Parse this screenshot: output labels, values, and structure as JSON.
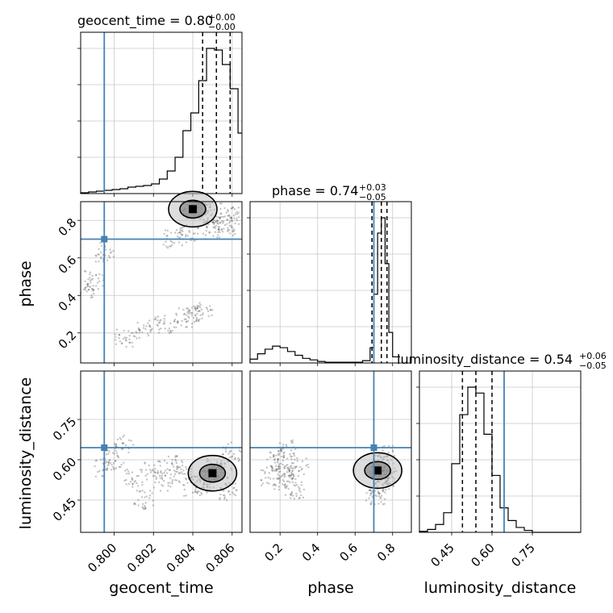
{
  "chart_data": {
    "type": "scatter",
    "subtype": "corner-plot",
    "parameters": [
      "geocent_time",
      "phase",
      "luminosity_distance"
    ],
    "titles": [
      {
        "parameter": "geocent_time",
        "label": "geocent_time = 0.80",
        "plus": "+0.00",
        "minus": "−0.00"
      },
      {
        "parameter": "phase",
        "label": "phase = 0.74",
        "plus": "+0.03",
        "minus": "−0.05"
      },
      {
        "parameter": "luminosity_distance",
        "label": "luminosity_distance = 0.54",
        "plus": "+0.06",
        "minus": "−0.05"
      }
    ],
    "axis_labels": {
      "x": [
        "geocent_time",
        "phase",
        "luminosity_distance"
      ],
      "y": [
        "phase",
        "luminosity_distance"
      ]
    },
    "ranges": {
      "geocent_time": [
        0.7983,
        0.8065
      ],
      "phase": [
        0.04,
        0.9
      ],
      "luminosity_distance": [
        0.33,
        0.93
      ]
    },
    "ticks": {
      "geocent_time": [
        {
          "value": 0.8,
          "label": "0.800"
        },
        {
          "value": 0.802,
          "label": "0.802"
        },
        {
          "value": 0.804,
          "label": "0.804"
        },
        {
          "value": 0.806,
          "label": "0.806"
        }
      ],
      "phase_x": [
        {
          "value": 0.2,
          "label": "0.2"
        },
        {
          "value": 0.4,
          "label": "0.4"
        },
        {
          "value": 0.6,
          "label": "0.6"
        },
        {
          "value": 0.8,
          "label": "0.8"
        }
      ],
      "phase_y": [
        {
          "value": 0.2,
          "label": "0.2"
        },
        {
          "value": 0.4,
          "label": "0.4"
        },
        {
          "value": 0.6,
          "label": "0.6"
        },
        {
          "value": 0.8,
          "label": "0.8"
        }
      ],
      "luminosity_distance": [
        {
          "value": 0.45,
          "label": "0.45"
        },
        {
          "value": 0.6,
          "label": "0.60"
        },
        {
          "value": 0.75,
          "label": "0.75"
        }
      ]
    },
    "truths": {
      "geocent_time": 0.7995,
      "phase": 0.7,
      "luminosity_distance": 0.645
    },
    "quantiles": {
      "geocent_time": [
        0.8045,
        0.8052,
        0.8059
      ],
      "phase": [
        0.69,
        0.74,
        0.77
      ],
      "luminosity_distance": [
        0.49,
        0.54,
        0.6
      ]
    },
    "histograms": {
      "geocent_time": {
        "edges": [
          0.7983,
          0.7987,
          0.7991,
          0.7995,
          0.7999,
          0.8003,
          0.8007,
          0.8011,
          0.8015,
          0.8019,
          0.8023,
          0.8027,
          0.8031,
          0.8035,
          0.8039,
          0.8043,
          0.8047,
          0.8051,
          0.8055,
          0.8059,
          0.8063,
          0.8065
        ],
        "counts": [
          1,
          2,
          3,
          4,
          5,
          6,
          8,
          9,
          10,
          12,
          18,
          28,
          45,
          78,
          100,
          140,
          180,
          178,
          160,
          130,
          75
        ]
      },
      "phase": {
        "edges": [
          0.04,
          0.08,
          0.12,
          0.16,
          0.2,
          0.24,
          0.28,
          0.32,
          0.36,
          0.4,
          0.44,
          0.48,
          0.52,
          0.56,
          0.6,
          0.64,
          0.68,
          0.7,
          0.72,
          0.74,
          0.76,
          0.78,
          0.8,
          0.84
        ],
        "counts": [
          5,
          12,
          18,
          22,
          20,
          15,
          10,
          6,
          4,
          2,
          1,
          1,
          1,
          1,
          1,
          3,
          20,
          90,
          170,
          190,
          130,
          40,
          8
        ]
      },
      "luminosity_distance": {
        "edges": [
          0.33,
          0.36,
          0.39,
          0.42,
          0.45,
          0.48,
          0.51,
          0.54,
          0.57,
          0.6,
          0.63,
          0.66,
          0.69,
          0.72,
          0.75,
          0.93
        ],
        "counts": [
          1,
          3,
          8,
          20,
          70,
          120,
          148,
          142,
          100,
          58,
          25,
          12,
          5,
          2,
          0
        ]
      }
    },
    "scatter_clusters": [
      {
        "x": "geocent_time",
        "y": "phase",
        "points": [
          [
            0.804,
            0.86
          ],
          [
            0.8045,
            0.85
          ],
          [
            0.805,
            0.84
          ],
          [
            0.8055,
            0.8
          ],
          [
            0.806,
            0.82
          ],
          [
            0.8038,
            0.73
          ],
          [
            0.805,
            0.75
          ],
          [
            0.8057,
            0.77
          ],
          [
            0.803,
            0.7
          ],
          [
            0.7995,
            0.63
          ],
          [
            0.799,
            0.48
          ],
          [
            0.7985,
            0.44
          ],
          [
            0.8005,
            0.17
          ],
          [
            0.8015,
            0.22
          ],
          [
            0.8025,
            0.25
          ],
          [
            0.8035,
            0.28
          ],
          [
            0.804,
            0.3
          ],
          [
            0.8045,
            0.32
          ]
        ]
      },
      {
        "x": "geocent_time",
        "y": "luminosity_distance",
        "points": [
          [
            0.805,
            0.55
          ],
          [
            0.8048,
            0.53
          ],
          [
            0.8052,
            0.57
          ],
          [
            0.8045,
            0.51
          ],
          [
            0.8055,
            0.56
          ],
          [
            0.804,
            0.5
          ],
          [
            0.8035,
            0.55
          ],
          [
            0.803,
            0.58
          ],
          [
            0.8025,
            0.52
          ],
          [
            0.802,
            0.56
          ],
          [
            0.801,
            0.53
          ],
          [
            0.8,
            0.6
          ],
          [
            0.7995,
            0.57
          ],
          [
            0.806,
            0.63
          ],
          [
            0.8058,
            0.48
          ],
          [
            0.8015,
            0.45
          ],
          [
            0.8005,
            0.66
          ]
        ]
      },
      {
        "x": "phase",
        "y": "luminosity_distance",
        "points": [
          [
            0.72,
            0.56
          ],
          [
            0.74,
            0.54
          ],
          [
            0.76,
            0.58
          ],
          [
            0.73,
            0.5
          ],
          [
            0.75,
            0.62
          ],
          [
            0.71,
            0.47
          ],
          [
            0.77,
            0.53
          ],
          [
            0.2,
            0.58
          ],
          [
            0.22,
            0.52
          ],
          [
            0.18,
            0.61
          ],
          [
            0.25,
            0.55
          ],
          [
            0.28,
            0.49
          ],
          [
            0.15,
            0.54
          ],
          [
            0.24,
            0.64
          ],
          [
            0.3,
            0.57
          ]
        ]
      }
    ],
    "grid": true,
    "colors": {
      "truth": "#4682b4",
      "histogram": "#000000",
      "contour": "#000000",
      "points": "#555555",
      "grid": "#c8c8c8"
    }
  }
}
